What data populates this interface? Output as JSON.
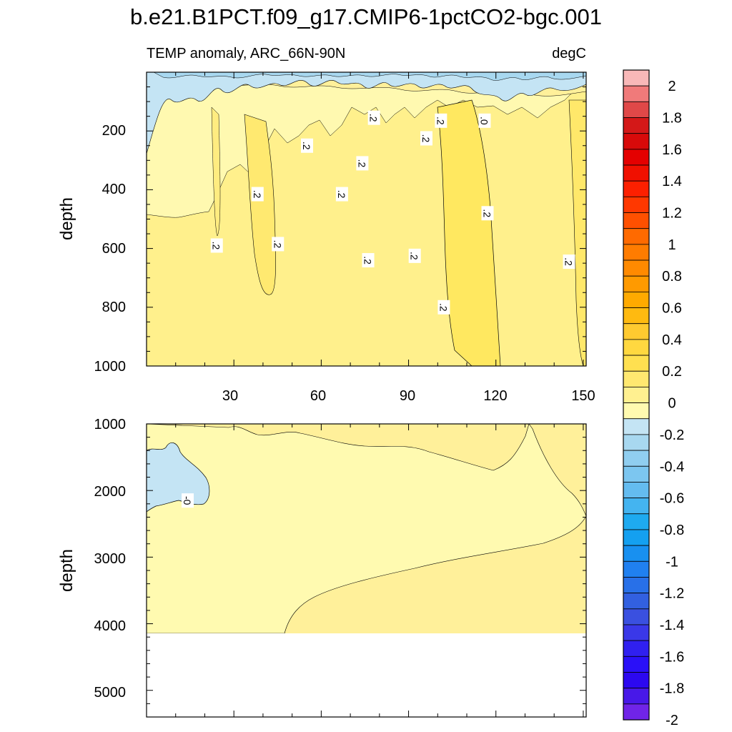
{
  "chart_data": {
    "type": "contour",
    "title": "b.e21.B1PCT.f09_g17.CMIP6-1pctCO2-bgc.001",
    "subtitle_left": "TEMP anomaly, ARC_66N-90N",
    "subtitle_right": "degC",
    "xlim": [
      0,
      151
    ],
    "x_ticks": [
      "30",
      "60",
      "90",
      "120",
      "150"
    ],
    "x_tick_values": [
      30,
      60,
      90,
      120,
      150
    ],
    "panels": [
      {
        "name": "upper",
        "ylabel": "depth",
        "ylim": [
          0,
          1000
        ],
        "y_ticks": [
          "200",
          "400",
          "600",
          "800",
          "1000"
        ],
        "y_tick_values": [
          200,
          400,
          600,
          800,
          1000
        ],
        "contour_labels": [
          {
            "text": ".2",
            "x": 24,
            "y": 590
          },
          {
            "text": ".2",
            "x": 38,
            "y": 415
          },
          {
            "text": ".2",
            "x": 45,
            "y": 585
          },
          {
            "text": ".2",
            "x": 55,
            "y": 250
          },
          {
            "text": ".2",
            "x": 67,
            "y": 415
          },
          {
            "text": ".2",
            "x": 74,
            "y": 310
          },
          {
            "text": ".2",
            "x": 76,
            "y": 640
          },
          {
            "text": ".2",
            "x": 78,
            "y": 155
          },
          {
            "text": ".2",
            "x": 92,
            "y": 625
          },
          {
            "text": ".2",
            "x": 96,
            "y": 225
          },
          {
            "text": ".2",
            "x": 101,
            "y": 165
          },
          {
            "text": ".2",
            "x": 102,
            "y": 800
          },
          {
            "text": ".0",
            "x": 116,
            "y": 165
          },
          {
            "text": ".2",
            "x": 117,
            "y": 480
          },
          {
            "text": ".2",
            "x": 145,
            "y": 645
          }
        ]
      },
      {
        "name": "lower",
        "ylabel": "depth",
        "ylim": [
          1000,
          5400
        ],
        "y_ticks": [
          "1000",
          "2000",
          "3000",
          "4000",
          "5000"
        ],
        "y_tick_values": [
          1000,
          2000,
          3000,
          4000,
          5000
        ],
        "data_max_depth": 4120,
        "contour_labels": [
          {
            "text": "-0",
            "x": 14,
            "y": 2150
          }
        ]
      }
    ],
    "colorbar": {
      "labels": [
        "2",
        "1.8",
        "1.6",
        "1.4",
        "1.2",
        "1",
        "0.8",
        "0.6",
        "0.4",
        "0.2",
        "0",
        "-0.2",
        "-0.4",
        "-0.6",
        "-0.8",
        "-1",
        "-1.2",
        "-1.4",
        "-1.6",
        "-1.8",
        "-2"
      ],
      "label_values": [
        2,
        1.8,
        1.6,
        1.4,
        1.2,
        1,
        0.8,
        0.6,
        0.4,
        0.2,
        0,
        -0.2,
        -0.4,
        -0.6,
        -0.8,
        -1,
        -1.2,
        -1.4,
        -1.6,
        -1.8,
        -2
      ],
      "levels_top_to_bottom": [
        2.2,
        2.0,
        1.9,
        1.8,
        1.7,
        1.6,
        1.5,
        1.4,
        1.3,
        1.2,
        1.1,
        1.0,
        0.9,
        0.8,
        0.7,
        0.6,
        0.5,
        0.4,
        0.3,
        0.2,
        0.1,
        0.0,
        -0.1,
        -0.2,
        -0.3,
        -0.4,
        -0.5,
        -0.6,
        -0.7,
        -0.8,
        -0.9,
        -1.0,
        -1.1,
        -1.2,
        -1.3,
        -1.4,
        -1.5,
        -1.6,
        -1.7,
        -1.8,
        -1.9,
        -2.0
      ],
      "colors_top_to_bottom": [
        "#f8b8b8",
        "#f07a7a",
        "#e04848",
        "#d41818",
        "#d80a0a",
        "#e40000",
        "#f01000",
        "#fc2000",
        "#ff3800",
        "#ff5000",
        "#ff6a00",
        "#ff7c00",
        "#ff8a00",
        "#ff9a00",
        "#ffaa00",
        "#ffba10",
        "#ffca30",
        "#ffd840",
        "#ffe050",
        "#ffe870",
        "#fff090",
        "#fffab0",
        "#c4e4f4",
        "#a8d8f0",
        "#90cef0",
        "#7cc6f0",
        "#64bcf0",
        "#44b4f0",
        "#1eaaf0",
        "#14a0f0",
        "#1890f0",
        "#2080f0",
        "#2870e8",
        "#3260e0",
        "#3a50e0",
        "#3a38e8",
        "#3020f0",
        "#2a10f8",
        "#2c08f0",
        "#4818e8",
        "#7024e8"
      ]
    }
  }
}
